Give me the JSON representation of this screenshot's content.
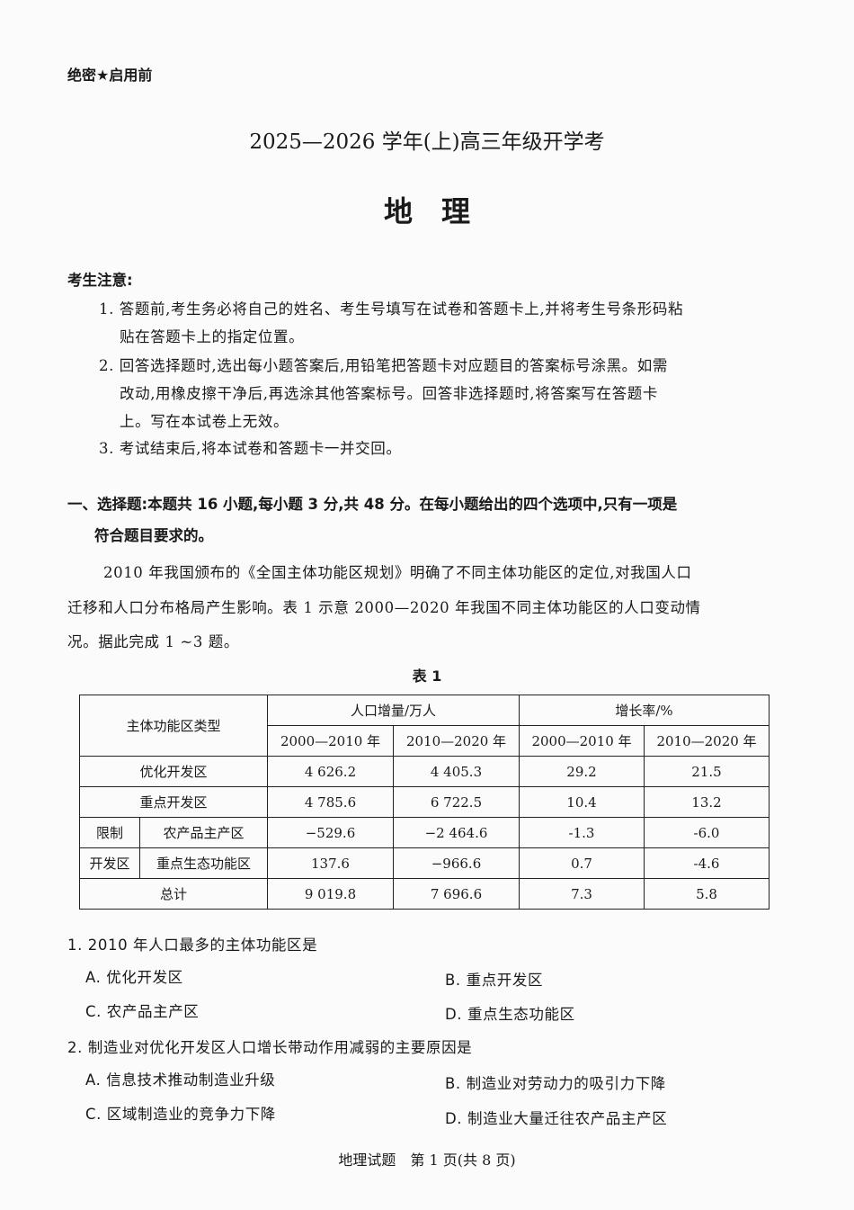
{
  "header": {
    "secret": "绝密★启用前",
    "exam_title": "2025—2026 学年(上)高三年级开学考",
    "subject": "地　理"
  },
  "notice": {
    "title": "考生注意:",
    "items": [
      [
        "1. 答题前,考生务必将自己的姓名、考生号填写在试卷和答题卡上,并将考生号条形码粘",
        "贴在答题卡上的指定位置。"
      ],
      [
        "2. 回答选择题时,选出每小题答案后,用铅笔把答题卡对应题目的答案标号涂黑。如需",
        "改动,用橡皮擦干净后,再选涂其他答案标号。回答非选择题时,将答案写在答题卡",
        "上。写在本试卷上无效。"
      ],
      [
        "3. 考试结束后,将本试卷和答题卡一并交回。"
      ]
    ]
  },
  "section": {
    "line1": "一、选择题:本题共 16 小题,每小题 3 分,共 48 分。在每小题给出的四个选项中,只有一项是",
    "line2": "符合题目要求的。"
  },
  "intro": [
    "2010 年我国颁布的《全国主体功能区规划》明确了不同主体功能区的定位,对我国人口",
    "迁移和人口分布格局产生影响。表 1 示意 2000—2020 年我国不同主体功能区的人口变动情",
    "况。据此完成 1 ~3 题。"
  ],
  "table": {
    "caption": "表 1",
    "col_type": "主体功能区类型",
    "group1": "人口增量/万人",
    "group2": "增长率/%",
    "periods": [
      "2000—2010 年",
      "2010—2020 年",
      "2000—2010 年",
      "2010—2020 年"
    ],
    "restricted_label_1": "限制",
    "restricted_label_2": "开发区",
    "rows": [
      {
        "name": "优化开发区",
        "values": [
          "4 626.2",
          "4 405.3",
          "29.2",
          "21.5"
        ]
      },
      {
        "name": "重点开发区",
        "values": [
          "4 785.6",
          "6 722.5",
          "10.4",
          "13.2"
        ]
      },
      {
        "name": "农产品主产区",
        "values": [
          "−529.6",
          "−2 464.6",
          "-1.3",
          "-6.0"
        ]
      },
      {
        "name": "重点生态功能区",
        "values": [
          "137.6",
          "−966.6",
          "0.7",
          "-4.6"
        ]
      },
      {
        "name": "总计",
        "values": [
          "9 019.8",
          "7 696.6",
          "7.3",
          "5.8"
        ]
      }
    ]
  },
  "questions": [
    {
      "stem": "1. 2010 年人口最多的主体功能区是",
      "options": [
        "A. 优化开发区",
        "B. 重点开发区",
        "C. 农产品主产区",
        "D. 重点生态功能区"
      ]
    },
    {
      "stem": "2. 制造业对优化开发区人口增长带动作用减弱的主要原因是",
      "options": [
        "A. 信息技术推动制造业升级",
        "B. 制造业对劳动力的吸引力下降",
        "C. 区域制造业的竞争力下降",
        "D. 制造业大量迁往农产品主产区"
      ]
    }
  ],
  "footer": "地理试题　第 1 页(共 8 页)"
}
